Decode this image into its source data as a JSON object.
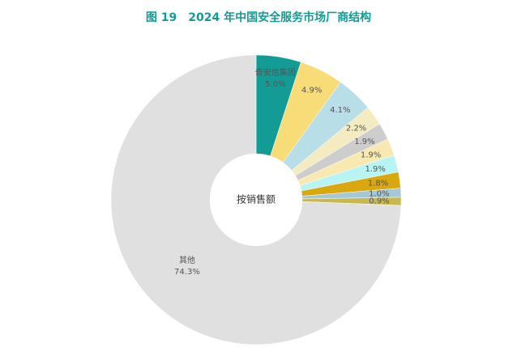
{
  "chart_data": {
    "type": "donut",
    "title": "图 19　2024 年中国安全服务市场厂商结构",
    "center_label": "按销售额",
    "categories": [
      "奇安信集团",
      null,
      null,
      null,
      null,
      null,
      null,
      null,
      null,
      null,
      "其他"
    ],
    "values": [
      5.0,
      4.9,
      4.1,
      2.2,
      1.9,
      1.9,
      1.9,
      1.8,
      1.0,
      0.9,
      74.3
    ],
    "value_labels": [
      "5.0%",
      "4.9%",
      "4.1%",
      "2.2%",
      "1.9%",
      "1.9%",
      "1.9%",
      "1.8%",
      "1.0%",
      "0.9%",
      "74.3%"
    ],
    "colors": [
      "#139c96",
      "#f8dc78",
      "#b8dee7",
      "#f4ecc0",
      "#cdcdcd",
      "#f8e9b0",
      "#b9f4f4",
      "#d9a80f",
      "#a5c8d8",
      "#c8b84e",
      "#e0e0e0"
    ]
  }
}
